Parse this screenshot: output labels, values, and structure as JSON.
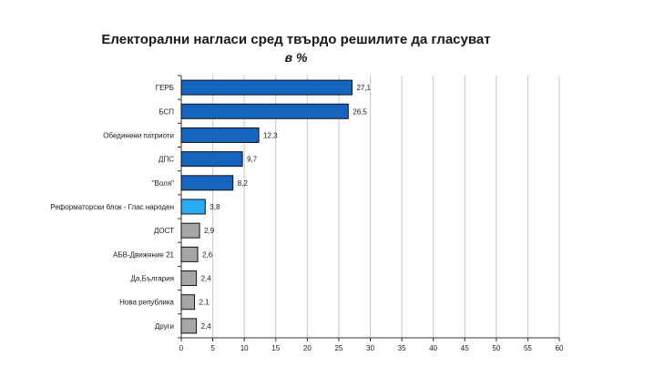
{
  "chart_data": {
    "type": "bar",
    "orientation": "horizontal",
    "title": "Електорални нагласи сред твърдо решилите да гласуват",
    "subtitle": "в %",
    "categories": [
      "ГЕРБ",
      "БСП",
      "Обединени патриоти",
      "ДПС",
      "\"Воля\"",
      "Реформаторски блок - Глас народен",
      "ДОСТ",
      "АБВ-Движение 21",
      "Да,България",
      "Нова република",
      "Други"
    ],
    "values": [
      27.1,
      26.5,
      12.3,
      9.7,
      8.2,
      3.8,
      2.9,
      2.6,
      2.4,
      2.1,
      2.4
    ],
    "value_labels": [
      "27,1",
      "26,5",
      "12,3",
      "9,7",
      "8,2",
      "3,8",
      "2,9",
      "2,6",
      "2,4",
      "2,1",
      "2,4"
    ],
    "bar_colors": [
      "#1565c0",
      "#1565c0",
      "#1565c0",
      "#1565c0",
      "#1565c0",
      "#29aaf4",
      "#a6a6a6",
      "#a6a6a6",
      "#a6a6a6",
      "#a6a6a6",
      "#a6a6a6"
    ],
    "xlim": [
      0,
      60
    ],
    "xticks": [
      0,
      5,
      10,
      15,
      20,
      25,
      30,
      35,
      40,
      45,
      50,
      55,
      60
    ],
    "grid": true,
    "legend": "none"
  }
}
